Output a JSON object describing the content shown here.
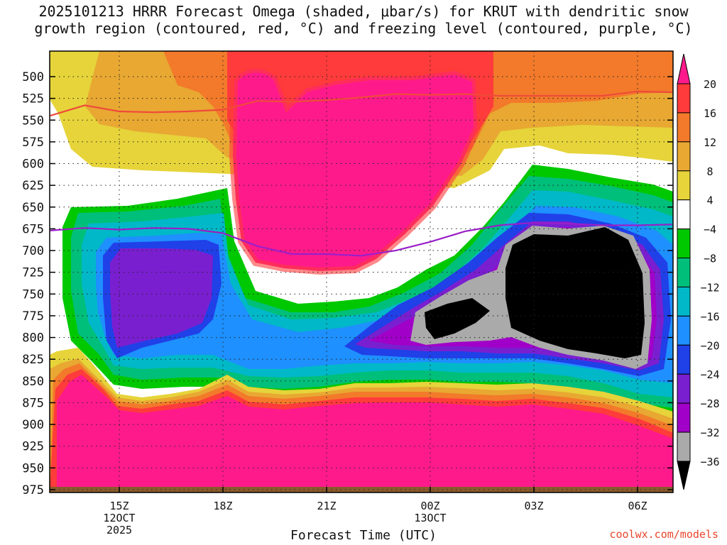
{
  "chart_data": {
    "type": "heatmap",
    "title_line1": "2025101213 HRRR Forecast Omega (shaded, μbar/s) for KRUT with dendritic snow",
    "title_line2": "growth region (contoured, red, °C) and freezing level (contoured, purple, °C)",
    "xlabel": "Forecast Time (UTC)",
    "credit": "coolwx.com/models",
    "y_ticks": [
      "500",
      "525",
      "550",
      "575",
      "600",
      "625",
      "650",
      "675",
      "700",
      "725",
      "750",
      "775",
      "800",
      "825",
      "850",
      "875",
      "900",
      "925",
      "950",
      "975"
    ],
    "y_values": [
      500,
      525,
      550,
      575,
      600,
      625,
      650,
      675,
      700,
      725,
      750,
      775,
      800,
      825,
      850,
      875,
      900,
      925,
      950,
      975
    ],
    "x_ticks": [
      {
        "hour": 15,
        "lines": [
          "15Z",
          "12OCT",
          "2025"
        ]
      },
      {
        "hour": 18,
        "lines": [
          "18Z"
        ]
      },
      {
        "hour": 21,
        "lines": [
          "21Z"
        ]
      },
      {
        "hour": 24,
        "lines": [
          "00Z",
          "13OCT"
        ]
      },
      {
        "hour": 27,
        "lines": [
          "03Z"
        ]
      },
      {
        "hour": 30,
        "lines": [
          "06Z"
        ]
      }
    ],
    "x_range_hours": [
      13,
      31
    ],
    "colorbar": {
      "labels": [
        "20",
        "16",
        "12",
        "8",
        "4",
        "−4",
        "−8",
        "−12",
        "−16",
        "−20",
        "−24",
        "−28",
        "−32",
        "−36"
      ],
      "colors": [
        "#ff1a8c",
        "#ff3b3b",
        "#f27a2a",
        "#e8a832",
        "#e6d43a",
        "#ffffff",
        "#00c800",
        "#00bf7a",
        "#00b8c8",
        "#1e90ff",
        "#2040e8",
        "#7a1fd0",
        "#a000c8",
        "#aaaaaa",
        "#000000"
      ]
    },
    "series": [
      {
        "name": "dendritic snow growth region (red)",
        "color": "#ef4a3a",
        "x": [
          13,
          14,
          15,
          16,
          17,
          18,
          19,
          20,
          21,
          22,
          23,
          24,
          25,
          26,
          27,
          28,
          29,
          30,
          31
        ],
        "y": [
          545,
          533,
          540,
          541,
          540,
          538,
          528,
          529,
          527,
          524,
          520,
          521,
          520,
          522,
          522,
          522,
          522,
          517,
          518
        ]
      },
      {
        "name": "freezing level (purple)",
        "color": "#9a1fc8",
        "x": [
          13,
          14,
          15,
          16,
          17,
          18,
          19,
          20,
          21,
          22,
          23,
          24,
          25,
          26,
          27,
          28,
          29,
          30,
          31
        ],
        "y": [
          677,
          674,
          676,
          674,
          675,
          680,
          695,
          704,
          704,
          706,
          700,
          690,
          678,
          671,
          668,
          669,
          671,
          671,
          670
        ]
      }
    ],
    "grid": true
  }
}
